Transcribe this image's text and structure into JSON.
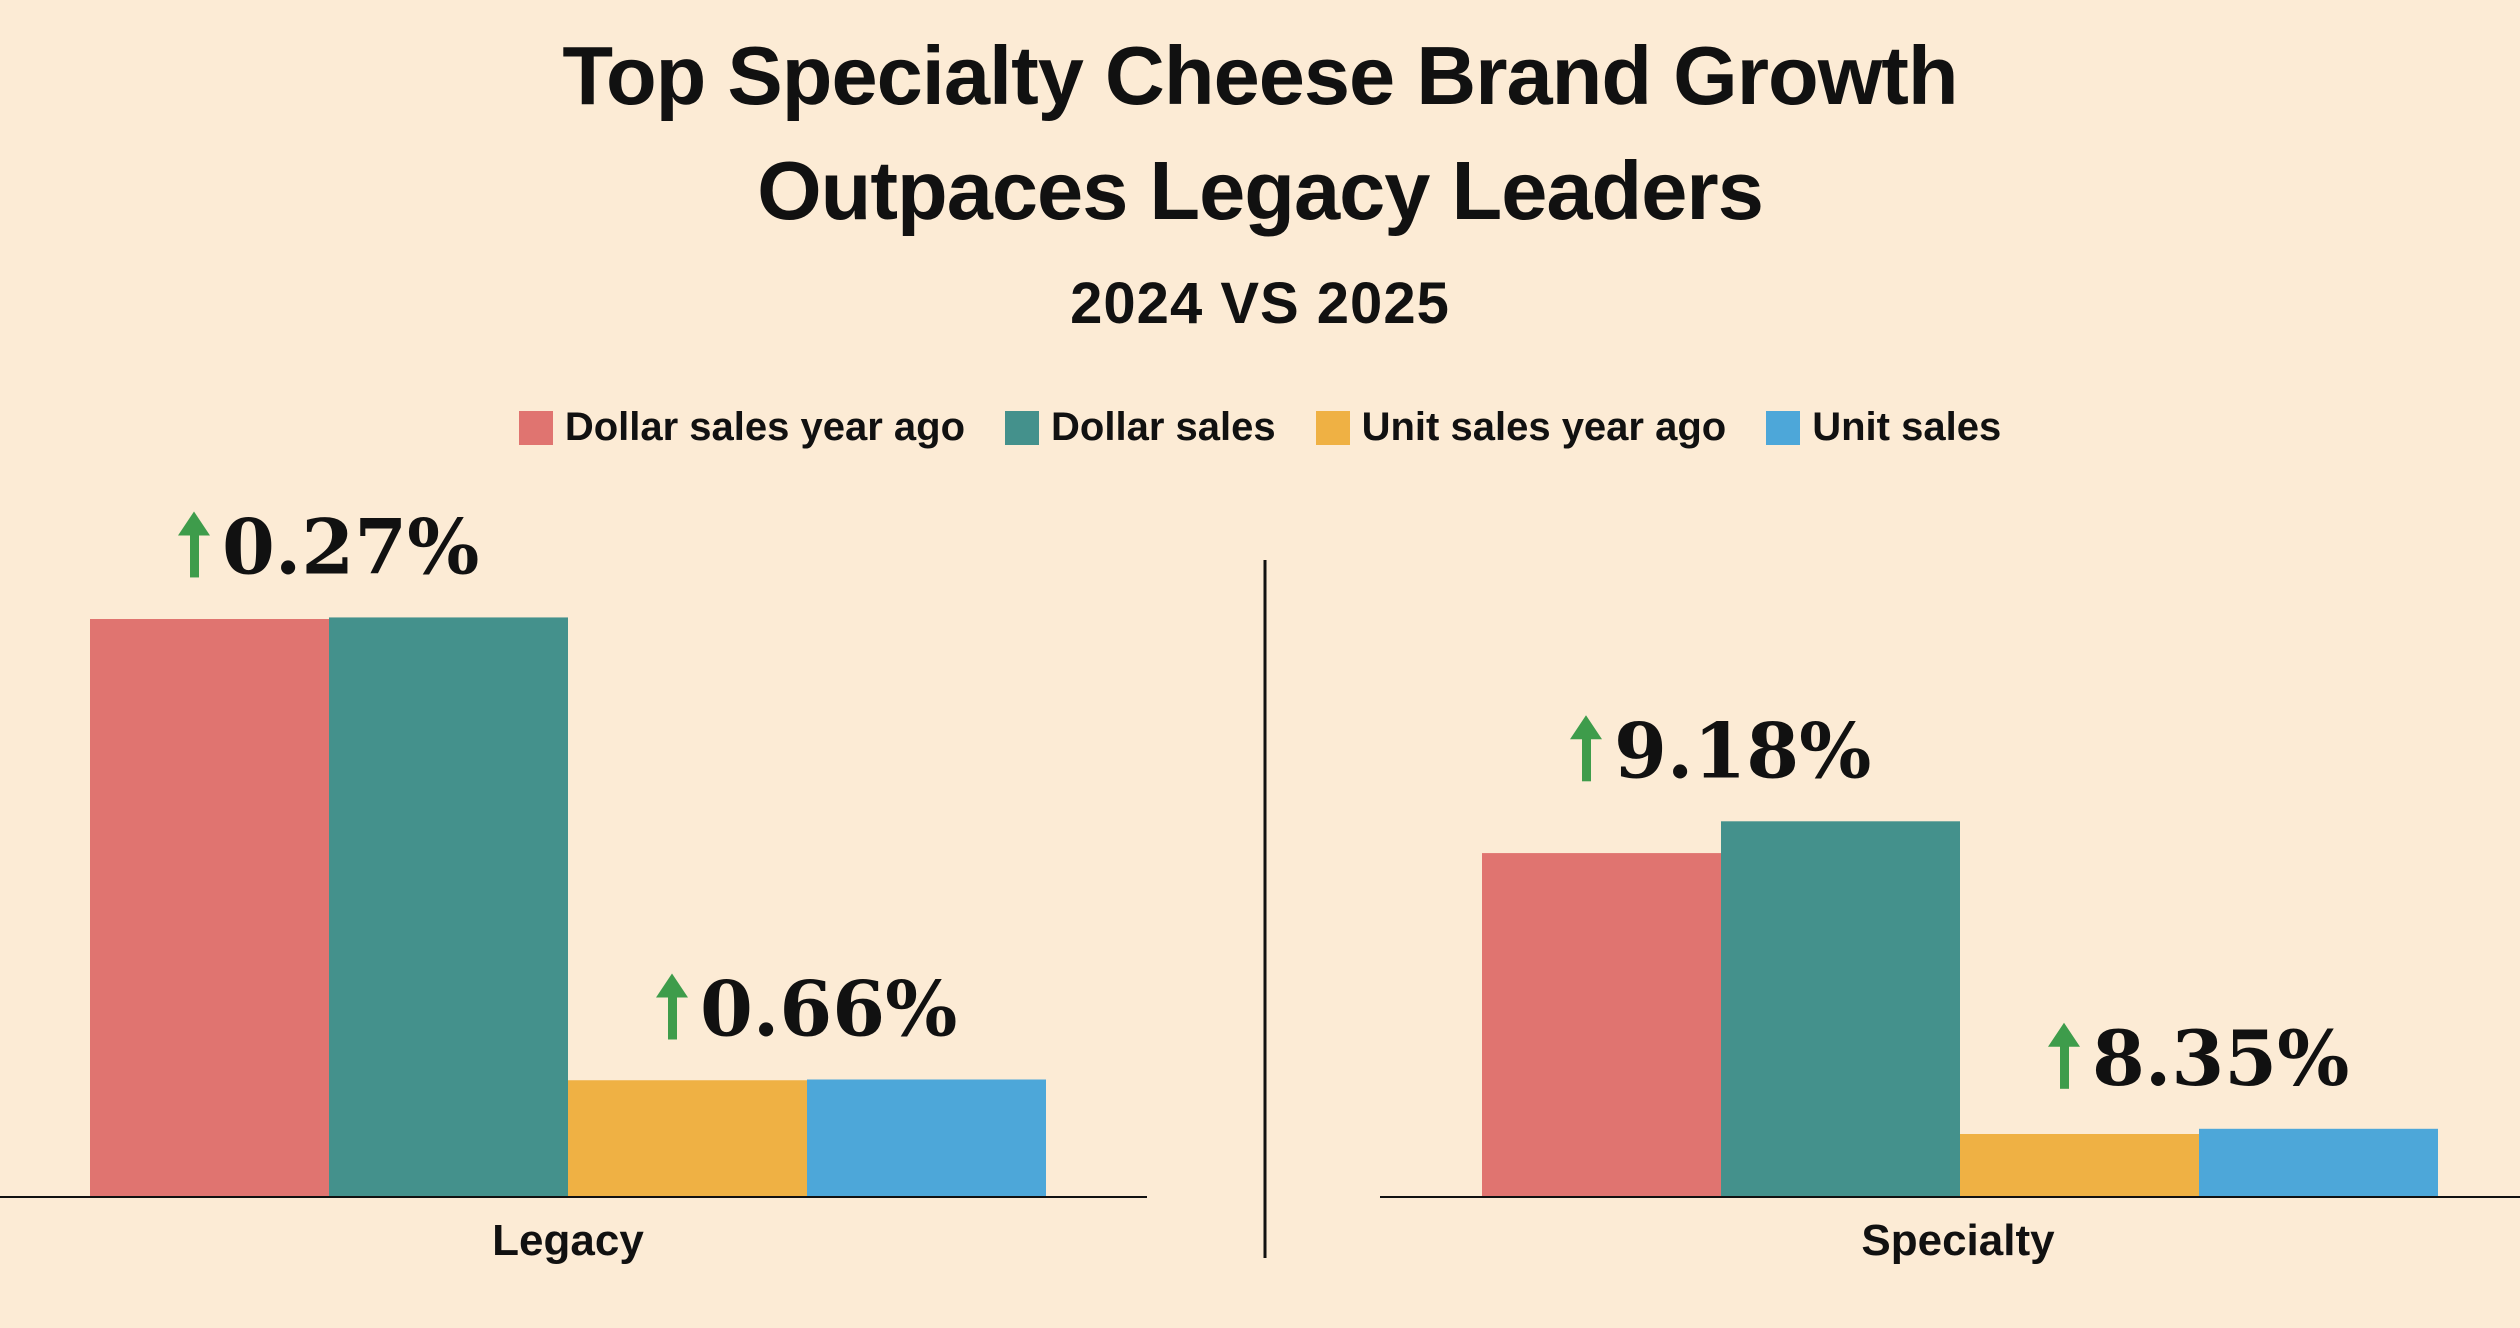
{
  "chart_data": {
    "type": "bar",
    "title_line1": "Top Specialty Cheese Brand Growth",
    "title_line2": "Outpaces Legacy Leaders",
    "subtitle": "2024 VS 2025",
    "legend": [
      {
        "name": "Dollar sales year ago",
        "color": "#e07470"
      },
      {
        "name": "Dollar sales",
        "color": "#44918c"
      },
      {
        "name": "Unit sales year ago",
        "color": "#efb144"
      },
      {
        "name": "Unit sales",
        "color": "#4da7d9"
      }
    ],
    "panels": [
      {
        "category": "Legacy",
        "values": [
          100,
          100.27,
          20.2,
          20.33
        ],
        "changes": [
          {
            "label": "0.27%",
            "direction": "up",
            "over": "dollar"
          },
          {
            "label": "0.66%",
            "direction": "up",
            "over": "unit"
          }
        ]
      },
      {
        "category": "Specialty",
        "values": [
          59.5,
          65.0,
          10.9,
          11.8
        ],
        "changes": [
          {
            "label": "9.18%",
            "direction": "up",
            "over": "dollar"
          },
          {
            "label": "8.35%",
            "direction": "up",
            "over": "unit"
          }
        ]
      }
    ],
    "y_axis_visible": false,
    "grid": false,
    "legend_position": "top-center",
    "arrow_color": "#3e9c4b"
  }
}
